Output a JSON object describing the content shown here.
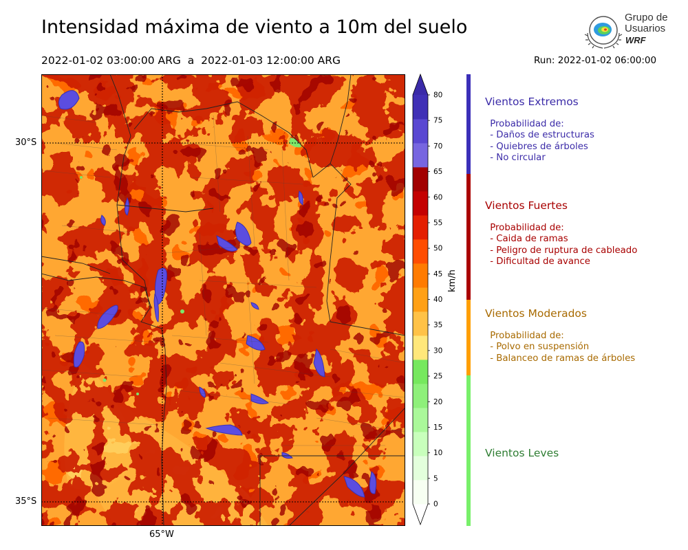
{
  "header": {
    "title": "Intensidad máxima de viento a 10m del suelo",
    "period": "2022-01-02 03:00:00 ARG  a  2022-01-03 12:00:00 ARG",
    "run": "Run: 2022-01-02 06:00:00"
  },
  "logo": {
    "line1": "Grupo de",
    "line2": "Usuarios",
    "brand": "WRF"
  },
  "map": {
    "lat_labels": [
      "30°S",
      "35°S"
    ],
    "lon_labels": [
      "65°W"
    ],
    "dominant_colors": [
      "#ff6600",
      "#ff3300",
      "#cc0000",
      "#a50000",
      "#ffb347",
      "#5555dd"
    ]
  },
  "colorbar": {
    "unit": "km/h",
    "ticks": [
      "0",
      "5",
      "10",
      "15",
      "20",
      "25",
      "30",
      "35",
      "40",
      "45",
      "50",
      "55",
      "60",
      "65",
      "70",
      "75",
      "80"
    ],
    "colors": [
      "#f7fff2",
      "#e3ffdc",
      "#c8ffbc",
      "#aaf89a",
      "#8ef07a",
      "#76e85e",
      "#ffe77a",
      "#ffc247",
      "#ffa015",
      "#ff7b00",
      "#ff4d00",
      "#e41e00",
      "#c40000",
      "#a20000",
      "#7766e0",
      "#5a48d2",
      "#4030b6"
    ],
    "under_color": "#ffffff",
    "over_color": "#3a2aa8"
  },
  "legend": {
    "categories": [
      {
        "title": "Vientos Extremos",
        "color": "#3b2fb8",
        "text_color": "#3b2ba8",
        "desc": [
          " Probabilidad de:",
          " - Daños de estructuras",
          " - Quiebres de árboles",
          " - No circular"
        ]
      },
      {
        "title": "Vientos Fuertes",
        "color": "#aa0000",
        "text_color": "#a80000",
        "desc": [
          " Probabilidad de:",
          " - Caida de ramas",
          " - Peligro de ruptura de cableado",
          " - Dificultad de avance"
        ]
      },
      {
        "title": "Vientos Moderados",
        "color": "#ff9f00",
        "text_color": "#a86a00",
        "desc": [
          " Probabilidad de:",
          " - Polvo en suspensión",
          " - Balanceo de ramas de árboles"
        ]
      },
      {
        "title": "Vientos Leves",
        "color": "#78f06a",
        "text_color": "#2e7d32",
        "desc": []
      }
    ]
  }
}
